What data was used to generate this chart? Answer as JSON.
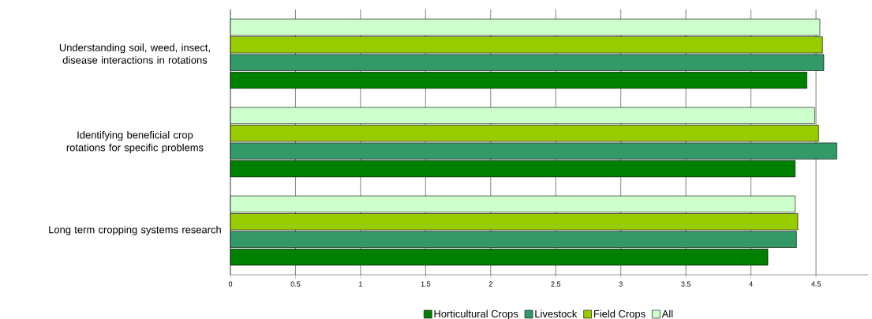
{
  "chart_data": {
    "type": "bar",
    "orientation": "horizontal",
    "categories": [
      "Understanding soil, weed, insect, disease interactions in rotations",
      "Identifying beneficial crop rotations for specific problems",
      "Long term cropping systems research"
    ],
    "series": [
      {
        "name": "Horticultural Crops",
        "color": "#008000",
        "values": [
          4.43,
          4.34,
          4.13
        ]
      },
      {
        "name": "Livestock",
        "color": "#339966",
        "values": [
          4.56,
          4.66,
          4.35
        ]
      },
      {
        "name": "Field Crops",
        "color": "#99cc00",
        "values": [
          4.55,
          4.52,
          4.36
        ]
      },
      {
        "name": "All",
        "color": "#ccffcc",
        "values": [
          4.53,
          4.49,
          4.34
        ]
      }
    ],
    "xlim": [
      0,
      4.9
    ],
    "xticks": [
      0,
      0.5,
      1,
      1.5,
      2,
      2.5,
      3,
      3.5,
      4,
      4.5
    ],
    "grid": "x",
    "legend": "bottom"
  }
}
